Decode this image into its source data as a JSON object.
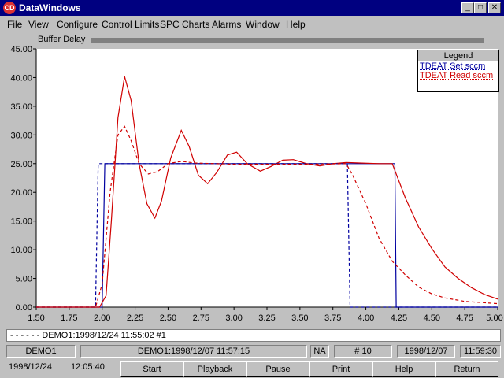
{
  "window": {
    "title": "DataWindows",
    "icon": "cd-icon"
  },
  "menu": [
    "File",
    "View",
    "Configure",
    "Control Limits",
    "SPC Charts",
    "Alarms",
    "Window",
    "Help"
  ],
  "buffer": {
    "label": "Buffer Delay"
  },
  "legend": {
    "title": "Legend",
    "entries": [
      {
        "label": "TDEAT Set sccm",
        "color": "#0000a0"
      },
      {
        "label": "TDEAT Read sccm",
        "color": "#d00000"
      }
    ]
  },
  "chart_data": {
    "type": "line",
    "xlim": [
      1.5,
      5.0
    ],
    "ylim": [
      0,
      45
    ],
    "xticks": [
      "1.50",
      "1.75",
      "2.00",
      "2.25",
      "2.50",
      "2.75",
      "3.00",
      "3.25",
      "3.50",
      "3.75",
      "4.00",
      "4.25",
      "4.50",
      "4.75",
      "5.00"
    ],
    "yticks": [
      "0.00",
      "5.00",
      "10.00",
      "15.00",
      "20.00",
      "25.00",
      "30.00",
      "35.00",
      "40.00",
      "45.00"
    ],
    "series": [
      {
        "name": "TDEAT Set sccm",
        "color": "#0000a0",
        "dash": false,
        "points": [
          [
            1.5,
            0
          ],
          [
            2.0,
            0
          ],
          [
            2.02,
            25
          ],
          [
            4.22,
            25
          ],
          [
            4.23,
            0
          ],
          [
            5.0,
            0
          ]
        ]
      },
      {
        "name": "TDEAT Read sccm",
        "color": "#d00000",
        "dash": false,
        "points": [
          [
            1.5,
            0
          ],
          [
            1.98,
            0
          ],
          [
            2.03,
            2
          ],
          [
            2.07,
            15
          ],
          [
            2.12,
            33
          ],
          [
            2.17,
            40.2
          ],
          [
            2.22,
            36
          ],
          [
            2.28,
            25
          ],
          [
            2.34,
            18
          ],
          [
            2.4,
            15.5
          ],
          [
            2.45,
            18.5
          ],
          [
            2.52,
            26
          ],
          [
            2.6,
            30.8
          ],
          [
            2.66,
            28
          ],
          [
            2.73,
            23
          ],
          [
            2.8,
            21.5
          ],
          [
            2.87,
            23.5
          ],
          [
            2.95,
            26.5
          ],
          [
            3.02,
            27
          ],
          [
            3.1,
            25
          ],
          [
            3.2,
            23.7
          ],
          [
            3.28,
            24.5
          ],
          [
            3.37,
            25.6
          ],
          [
            3.45,
            25.7
          ],
          [
            3.55,
            25
          ],
          [
            3.65,
            24.6
          ],
          [
            3.75,
            25
          ],
          [
            3.85,
            25.2
          ],
          [
            3.95,
            25.1
          ],
          [
            4.1,
            25
          ],
          [
            4.2,
            25
          ],
          [
            4.3,
            19
          ],
          [
            4.4,
            14
          ],
          [
            4.5,
            10.2
          ],
          [
            4.6,
            7
          ],
          [
            4.7,
            5
          ],
          [
            4.8,
            3.4
          ],
          [
            4.9,
            2.2
          ],
          [
            5.0,
            1.4
          ]
        ]
      },
      {
        "name": "TDEAT Set sccm (DEMO1)",
        "color": "#0000a0",
        "dash": true,
        "points": [
          [
            1.5,
            0
          ],
          [
            1.95,
            0
          ],
          [
            1.97,
            25
          ],
          [
            3.86,
            25
          ],
          [
            3.88,
            0
          ],
          [
            5.0,
            0
          ]
        ]
      },
      {
        "name": "TDEAT Read sccm (DEMO1)",
        "color": "#d00000",
        "dash": true,
        "points": [
          [
            1.5,
            0
          ],
          [
            1.95,
            0
          ],
          [
            2.0,
            4
          ],
          [
            2.06,
            20
          ],
          [
            2.12,
            30
          ],
          [
            2.17,
            31.5
          ],
          [
            2.22,
            29
          ],
          [
            2.28,
            25
          ],
          [
            2.35,
            23.2
          ],
          [
            2.42,
            23.6
          ],
          [
            2.5,
            25
          ],
          [
            2.6,
            25.4
          ],
          [
            2.7,
            25.1
          ],
          [
            2.85,
            25
          ],
          [
            3.0,
            24.9
          ],
          [
            3.3,
            24.9
          ],
          [
            3.6,
            24.9
          ],
          [
            3.85,
            25
          ],
          [
            3.9,
            23
          ],
          [
            4.0,
            18
          ],
          [
            4.1,
            12
          ],
          [
            4.2,
            8
          ],
          [
            4.3,
            5.6
          ],
          [
            4.4,
            3.5
          ],
          [
            4.5,
            2.3
          ],
          [
            4.6,
            1.6
          ],
          [
            4.75,
            1.0
          ],
          [
            5.0,
            0.6
          ]
        ]
      }
    ]
  },
  "footer": {
    "overlay_text": "DEMO1:1998/12/24 11:55:02 #1"
  },
  "status": {
    "cells": [
      "DEMO1",
      "DEMO1:1998/12/07 11:57:15",
      "NA",
      "# 10",
      "1998/12/07",
      "11:59:30"
    ]
  },
  "bottom": {
    "date": "1998/12/24",
    "time": "12:05:40"
  },
  "buttons": [
    "Start",
    "Playback",
    "Pause",
    "Print",
    "Help",
    "Return"
  ]
}
